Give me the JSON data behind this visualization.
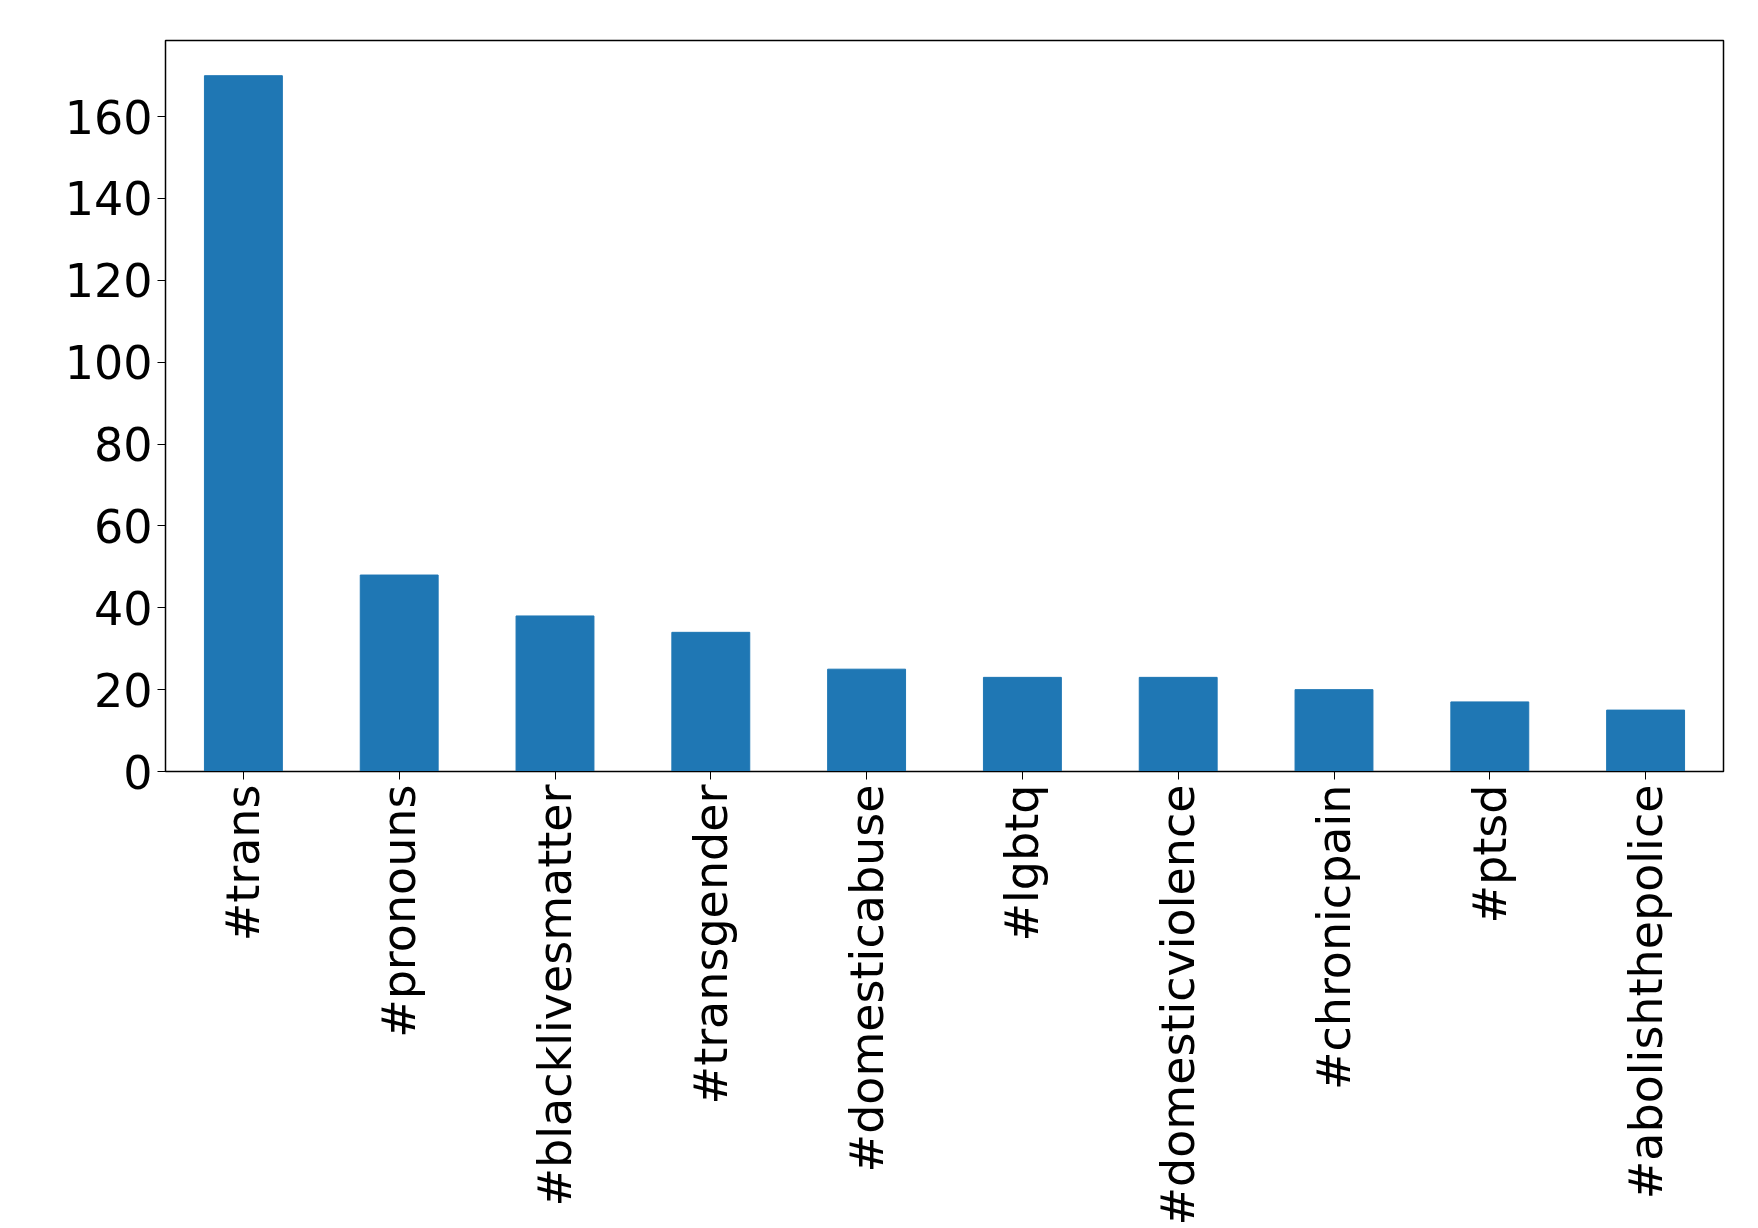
{
  "chart_data": {
    "type": "bar",
    "categories": [
      "#trans",
      "#pronouns",
      "#blacklivesmatter",
      "#transgender",
      "#domesticabuse",
      "#lgbtq",
      "#domesticviolence",
      "#chronicpain",
      "#ptsd",
      "#abolishthepolice"
    ],
    "values": [
      170,
      48,
      38,
      34,
      25,
      23,
      23,
      20,
      17,
      15
    ],
    "color": "#1f77b4",
    "ylim": [
      0,
      178.6
    ],
    "yticks": [
      0,
      20,
      40,
      60,
      80,
      100,
      120,
      140,
      160
    ],
    "grid": false
  }
}
